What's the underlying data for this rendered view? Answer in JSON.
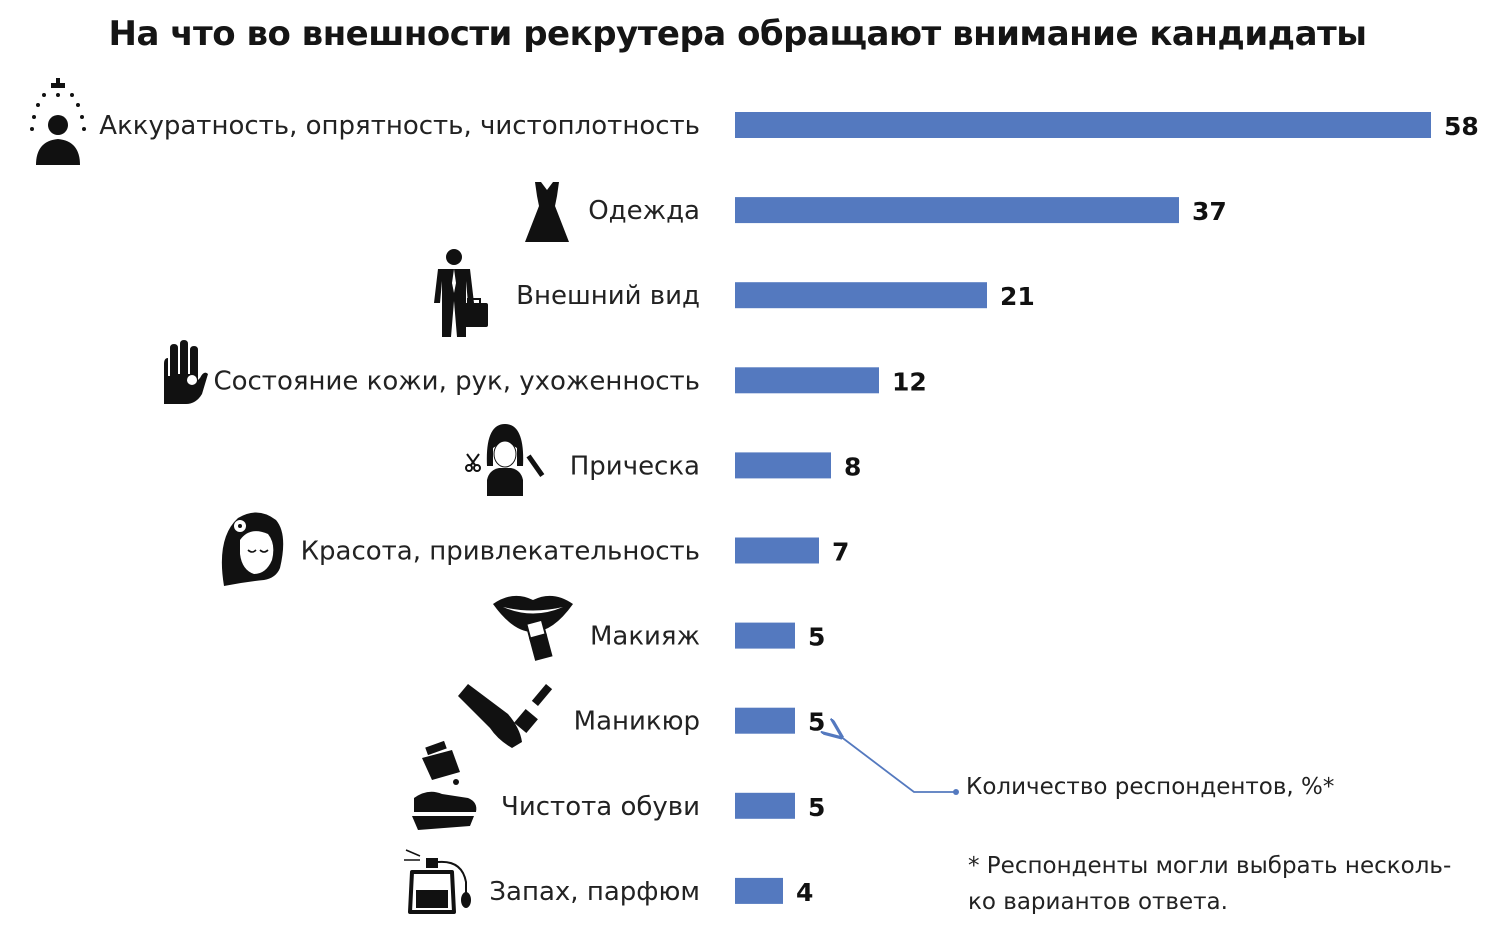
{
  "chart_data": {
    "type": "bar",
    "orientation": "horizontal",
    "title": "На что во внешности рекрутера обращают внимание кандидаты",
    "categories": [
      "Аккуратность, опрятность, чистоплотность",
      "Одежда",
      "Внешний вид",
      "Состояние кожи, рук, ухоженность",
      "Прическа",
      "Красота, привлекательность",
      "Макияж",
      "Маникюр",
      "Чистота обуви",
      "Запах, парфюм"
    ],
    "values": [
      58,
      37,
      21,
      12,
      8,
      7,
      5,
      5,
      5,
      4
    ],
    "xlim": [
      0,
      58
    ],
    "grid": false,
    "bar_color": "#5479bf",
    "annotation": "Количество респондентов, %*",
    "footnote": [
      "* Респонденты могли выбрать несколь-",
      "ко вариантов ответа."
    ]
  },
  "icons": [
    "shower-person-icon",
    "dress-icon",
    "businessman-icon",
    "hand-icon",
    "hairstyle-icon",
    "woman-face-icon",
    "lips-lipstick-icon",
    "nail-polish-icon",
    "shoe-polish-icon",
    "perfume-icon"
  ]
}
